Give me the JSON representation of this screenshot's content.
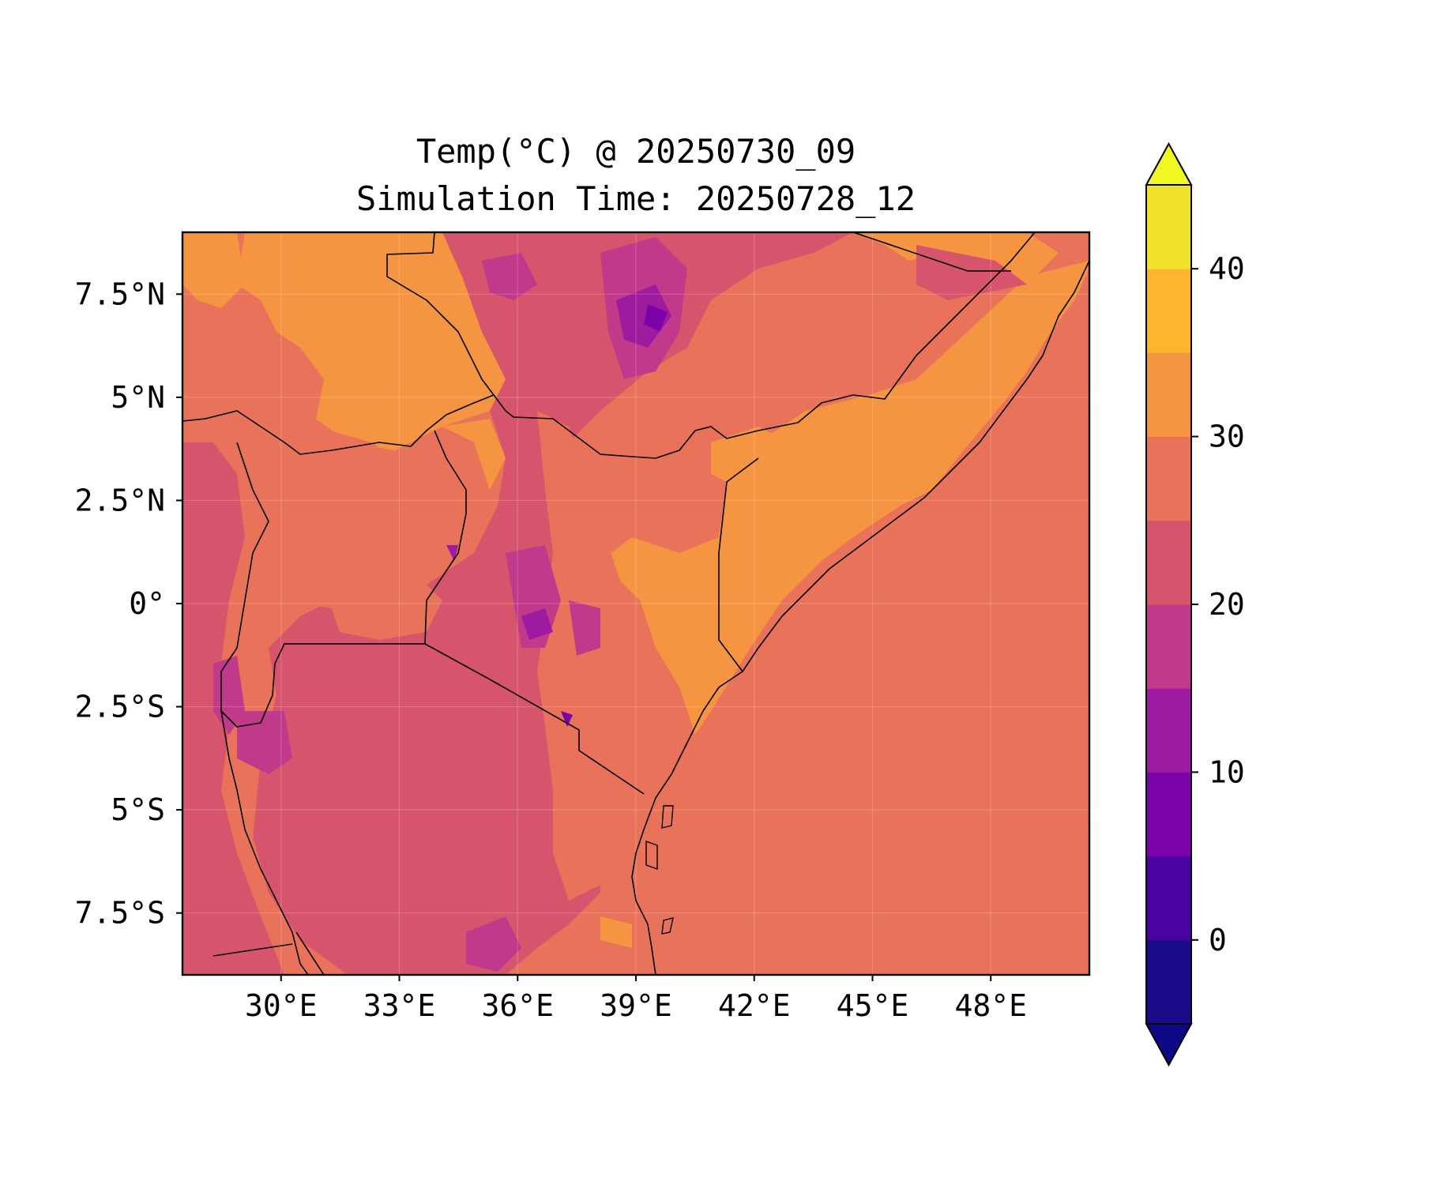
{
  "title": {
    "line1": "Temp(°C) @ 20250730_09",
    "line2": "Simulation Time: 20250728_12"
  },
  "map": {
    "type": "filled-contour",
    "projection": "PlateCarree",
    "lon_range": [
      27.5,
      50.5
    ],
    "lat_range": [
      -9.0,
      9.0
    ],
    "x_ticks": [
      "30°E",
      "33°E",
      "36°E",
      "39°E",
      "42°E",
      "45°E",
      "48°E"
    ],
    "y_ticks": [
      "7.5°N",
      "5°N",
      "2.5°N",
      "0°",
      "2.5°S",
      "5°S",
      "7.5°S"
    ],
    "grid": true,
    "features": [
      "coastline",
      "country-borders"
    ]
  },
  "colorbar": {
    "levels": [
      -5,
      0,
      5,
      10,
      15,
      20,
      25,
      30,
      35,
      40,
      45
    ],
    "tick_labels": [
      "0",
      "10",
      "20",
      "30",
      "40"
    ],
    "extend": "both",
    "colormap": "plasma",
    "colors": [
      "#1a0c88",
      "#4a03a0",
      "#7a02a8",
      "#9e1a9e",
      "#c0398a",
      "#d6556d",
      "#e8735a",
      "#f59541",
      "#fdb42f",
      "#f2e12a"
    ],
    "under_color": "#0d0887",
    "over_color": "#f0f921"
  },
  "colors": {
    "ocean": "#e8735a",
    "land_dominant": "#e8735a",
    "warm_lowland": "#f59541",
    "highland": "#d6556d",
    "border": "#000000"
  }
}
